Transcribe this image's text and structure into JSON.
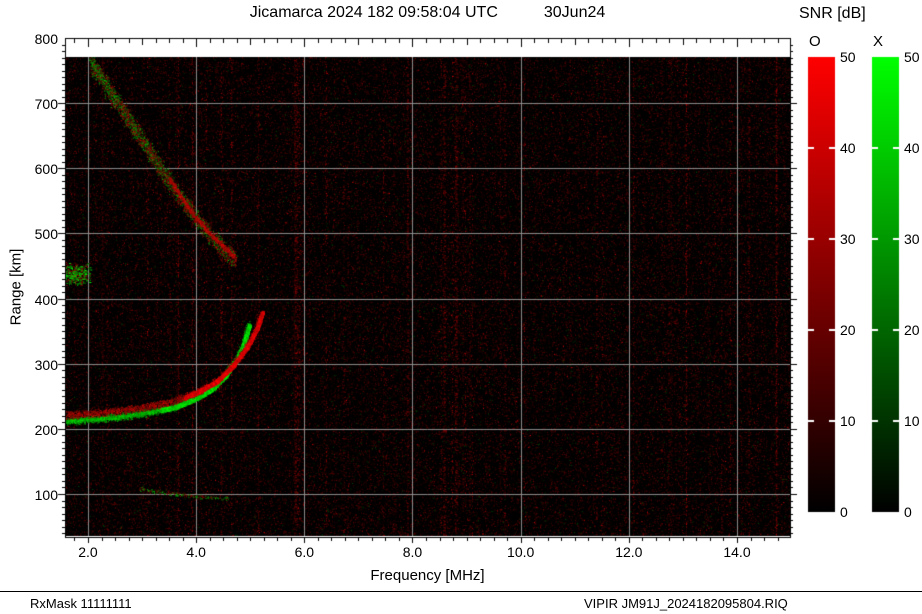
{
  "header": {
    "title": "Jicamarca 2024 182 09:58:04 UTC",
    "date": "30Jun24"
  },
  "footer": {
    "rx_mask": "RxMask 11111111",
    "file": "VIPIR  JM91J_2024182095804.RIQ"
  },
  "colorbars": {
    "title": "SNR [dB]",
    "unit_min": 0,
    "unit_max": 50,
    "bars": [
      {
        "label": "O",
        "color_low": "#000000",
        "color_high": "#ff0000",
        "ticks": [
          0,
          10,
          20,
          30,
          40,
          50
        ]
      },
      {
        "label": "X",
        "color_low": "#000000",
        "color_high": "#00ff00",
        "ticks": [
          0,
          10,
          20,
          30,
          40,
          50
        ]
      }
    ]
  },
  "chart_data": {
    "type": "heatmap",
    "title": "Jicamarca 2024 182 09:58:04 UTC 30Jun24",
    "xlabel": "Frequency [MHz]",
    "ylabel": "Range [km]",
    "xlim": [
      1.575,
      14.98
    ],
    "ylim": [
      34,
      800
    ],
    "xticks": [
      2.0,
      4.0,
      6.0,
      8.0,
      10.0,
      12.0,
      14.0
    ],
    "xtick_labels": [
      "2.0",
      "4.0",
      "6.0",
      "8.0",
      "10.0",
      "12.0",
      "14.0"
    ],
    "yticks": [
      100,
      200,
      300,
      400,
      500,
      600,
      700,
      800
    ],
    "grid": true,
    "background": "#000000",
    "noise": "dim red RFI speckle with vertical interference stripes",
    "snr_scale_db": [
      0,
      50
    ],
    "legend": {
      "O": "red",
      "X": "green"
    },
    "series": [
      {
        "name": "f-trace-x-mode",
        "mode": "X",
        "color": "#00ee00",
        "kind": "sharp",
        "points": [
          [
            1.6,
            212
          ],
          [
            2.1,
            215
          ],
          [
            2.6,
            219
          ],
          [
            3.1,
            225
          ],
          [
            3.6,
            234
          ],
          [
            4.0,
            248
          ],
          [
            4.3,
            263
          ],
          [
            4.55,
            284
          ],
          [
            4.75,
            308
          ],
          [
            4.88,
            333
          ],
          [
            4.98,
            360
          ]
        ]
      },
      {
        "name": "f-trace-o-mode",
        "mode": "O",
        "color": "#ff2200",
        "kind": "sharp",
        "points": [
          [
            1.6,
            221
          ],
          [
            2.1,
            224
          ],
          [
            2.6,
            228
          ],
          [
            3.1,
            234
          ],
          [
            3.6,
            243
          ],
          [
            4.05,
            258
          ],
          [
            4.4,
            275
          ],
          [
            4.7,
            300
          ],
          [
            4.95,
            328
          ],
          [
            5.12,
            355
          ],
          [
            5.22,
            380
          ]
        ]
      },
      {
        "name": "second-hop-diffuse-echo",
        "mode": "O+X",
        "color": "mixed",
        "kind": "diffuse",
        "points": [
          [
            2.05,
            765
          ],
          [
            2.4,
            718
          ],
          [
            2.8,
            670
          ],
          [
            3.2,
            618
          ],
          [
            3.6,
            568
          ],
          [
            4.0,
            524
          ],
          [
            4.3,
            494
          ],
          [
            4.55,
            472
          ],
          [
            4.72,
            461
          ]
        ]
      },
      {
        "name": "second-hop-red-streak",
        "mode": "O",
        "color": "#cc1100",
        "kind": "sharp-faint",
        "points": [
          [
            3.5,
            585
          ],
          [
            3.9,
            534
          ],
          [
            4.25,
            500
          ],
          [
            4.55,
            476
          ],
          [
            4.72,
            463
          ]
        ]
      },
      {
        "name": "left-edge-echo-patch",
        "mode": "O+X",
        "color": "mixed",
        "kind": "patch",
        "points": [
          [
            1.6,
            430
          ],
          [
            1.75,
            438
          ],
          [
            1.95,
            447
          ]
        ]
      },
      {
        "name": "sporadic-e-speckles",
        "mode": "O+X",
        "color": "mixed",
        "kind": "sparse",
        "points": [
          [
            2.95,
            108
          ],
          [
            3.5,
            101
          ],
          [
            4.1,
            96
          ],
          [
            4.6,
            93
          ]
        ]
      }
    ]
  }
}
